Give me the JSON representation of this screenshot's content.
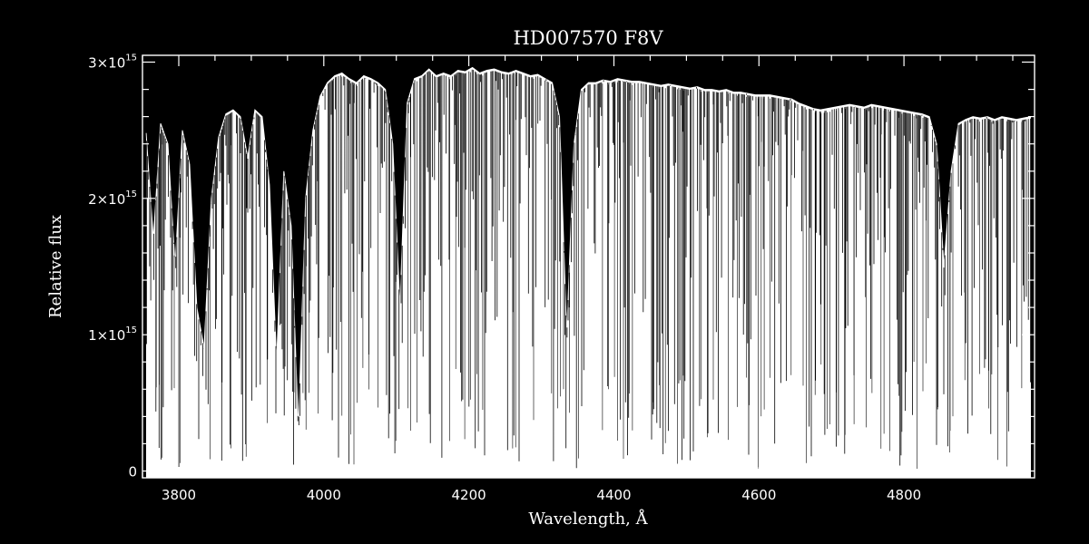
{
  "chart_data": {
    "type": "line",
    "title": "HD007570   F8V",
    "xlabel": "Wavelength, Å",
    "ylabel": "Relative flux",
    "xlim": [
      3750,
      4980
    ],
    "ylim": [
      -50000000000000,
      3050000000000000
    ],
    "x_ticks": [
      {
        "value": 3800,
        "label": "3800"
      },
      {
        "value": 4000,
        "label": "4000"
      },
      {
        "value": 4200,
        "label": "4200"
      },
      {
        "value": 4400,
        "label": "4400"
      },
      {
        "value": 4600,
        "label": "4600"
      },
      {
        "value": 4800,
        "label": "4800"
      }
    ],
    "y_ticks": [
      {
        "value": 0,
        "label": "0",
        "exp": ""
      },
      {
        "value": 1000000000000000,
        "label": "1×10",
        "exp": "15"
      },
      {
        "value": 2000000000000000,
        "label": "2×10",
        "exp": "15"
      },
      {
        "value": 3000000000000000,
        "label": "3×10",
        "exp": "15"
      }
    ],
    "x_minor_step": 50,
    "y_minor_step": 200000000000000,
    "grid": false,
    "series": [
      {
        "x": [
          3755,
          3765,
          3775,
          3785,
          3795,
          3805,
          3815,
          3825,
          3835,
          3845,
          3855,
          3865,
          3875,
          3885,
          3895,
          3905,
          3915,
          3925,
          3935,
          3945,
          3955,
          3965,
          3975,
          3985,
          3995,
          4005,
          4015,
          4025,
          4035,
          4045,
          4055,
          4065,
          4075,
          4085,
          4095,
          4105,
          4115,
          4125,
          4135,
          4145,
          4155,
          4165,
          4175,
          4185,
          4195,
          4205,
          4215,
          4225,
          4235,
          4245,
          4255,
          4265,
          4275,
          4285,
          4295,
          4305,
          4315,
          4325,
          4335,
          4345,
          4355,
          4365,
          4375,
          4385,
          4395,
          4405,
          4415,
          4425,
          4435,
          4445,
          4455,
          4465,
          4475,
          4485,
          4495,
          4505,
          4515,
          4525,
          4535,
          4545,
          4555,
          4565,
          4575,
          4585,
          4595,
          4605,
          4615,
          4625,
          4635,
          4645,
          4655,
          4665,
          4675,
          4685,
          4695,
          4705,
          4715,
          4725,
          4735,
          4745,
          4755,
          4765,
          4775,
          4785,
          4795,
          4805,
          4815,
          4825,
          4835,
          4845,
          4855,
          4865,
          4875,
          4885,
          4895,
          4905,
          4915,
          4925,
          4935,
          4945,
          4955,
          4965,
          4975
        ],
        "y": [
          2480000000000000,
          1700000000000000,
          2550000000000000,
          2400000000000000,
          1500000000000000,
          2500000000000000,
          2250000000000000,
          1200000000000000,
          900000000000000,
          2000000000000000,
          2450000000000000,
          2620000000000000,
          2650000000000000,
          2600000000000000,
          2300000000000000,
          2650000000000000,
          2600000000000000,
          2100000000000000,
          800000000000000,
          2200000000000000,
          1800000000000000,
          300000000000000,
          2000000000000000,
          2500000000000000,
          2750000000000000,
          2850000000000000,
          2900000000000000,
          2920000000000000,
          2880000000000000,
          2850000000000000,
          2900000000000000,
          2880000000000000,
          2850000000000000,
          2800000000000000,
          2400000000000000,
          1200000000000000,
          2700000000000000,
          2880000000000000,
          2900000000000000,
          2950000000000000,
          2900000000000000,
          2920000000000000,
          2900000000000000,
          2940000000000000,
          2930000000000000,
          2960000000000000,
          2920000000000000,
          2940000000000000,
          2950000000000000,
          2930000000000000,
          2920000000000000,
          2940000000000000,
          2920000000000000,
          2900000000000000,
          2910000000000000,
          2880000000000000,
          2850000000000000,
          2600000000000000,
          1000000000000000,
          2400000000000000,
          2800000000000000,
          2850000000000000,
          2850000000000000,
          2870000000000000,
          2860000000000000,
          2880000000000000,
          2870000000000000,
          2860000000000000,
          2860000000000000,
          2850000000000000,
          2840000000000000,
          2830000000000000,
          2840000000000000,
          2830000000000000,
          2820000000000000,
          2810000000000000,
          2820000000000000,
          2800000000000000,
          2800000000000000,
          2790000000000000,
          2800000000000000,
          2780000000000000,
          2780000000000000,
          2770000000000000,
          2760000000000000,
          2760000000000000,
          2760000000000000,
          2750000000000000,
          2740000000000000,
          2730000000000000,
          2700000000000000,
          2680000000000000,
          2660000000000000,
          2650000000000000,
          2660000000000000,
          2670000000000000,
          2680000000000000,
          2690000000000000,
          2680000000000000,
          2670000000000000,
          2690000000000000,
          2680000000000000,
          2670000000000000,
          2660000000000000,
          2650000000000000,
          2640000000000000,
          2630000000000000,
          2620000000000000,
          2600000000000000,
          2400000000000000,
          1500000000000000,
          2200000000000000,
          2550000000000000,
          2580000000000000,
          2600000000000000,
          2590000000000000,
          2600000000000000,
          2580000000000000,
          2600000000000000,
          2590000000000000,
          2580000000000000,
          2590000000000000,
          2600000000000000
        ]
      }
    ]
  },
  "colors": {
    "background": "#000000",
    "foreground": "#ffffff"
  }
}
